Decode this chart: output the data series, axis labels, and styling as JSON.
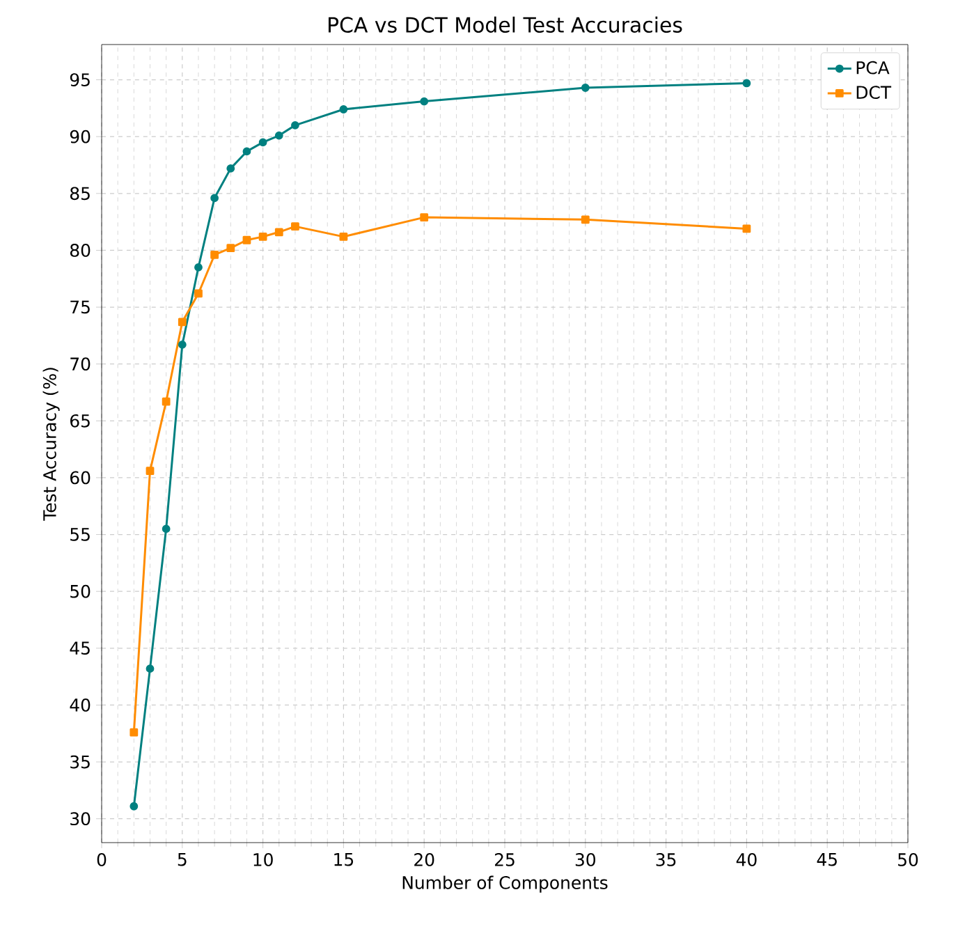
{
  "chart_data": {
    "type": "line",
    "title": "PCA vs DCT Model Test Accuracies",
    "xlabel": "Number of Components",
    "ylabel": "Test Accuracy (%)",
    "xlim": [
      0,
      50
    ],
    "ylim": [
      27.9,
      98.1
    ],
    "xticks": [
      0,
      5,
      10,
      15,
      20,
      25,
      30,
      35,
      40,
      45,
      50
    ],
    "yticks": [
      30,
      35,
      40,
      45,
      50,
      55,
      60,
      65,
      70,
      75,
      80,
      85,
      90,
      95
    ],
    "grid": true,
    "legend": "top right",
    "line_style": "solid",
    "x": [
      2,
      3,
      4,
      5,
      6,
      7,
      8,
      9,
      10,
      11,
      12,
      15,
      20,
      30,
      40
    ],
    "series": [
      {
        "name": "PCA",
        "color": "#008080",
        "marker": "circle",
        "values": [
          31.1,
          43.2,
          55.5,
          71.7,
          78.5,
          84.6,
          87.2,
          88.7,
          89.5,
          90.1,
          91.0,
          92.4,
          93.1,
          94.3,
          94.7
        ]
      },
      {
        "name": "DCT",
        "color": "#ff8c00",
        "marker": "square",
        "values": [
          37.6,
          60.6,
          66.7,
          73.7,
          76.2,
          79.6,
          80.2,
          80.9,
          81.2,
          81.6,
          82.1,
          81.2,
          82.9,
          82.7,
          81.9
        ]
      }
    ]
  }
}
